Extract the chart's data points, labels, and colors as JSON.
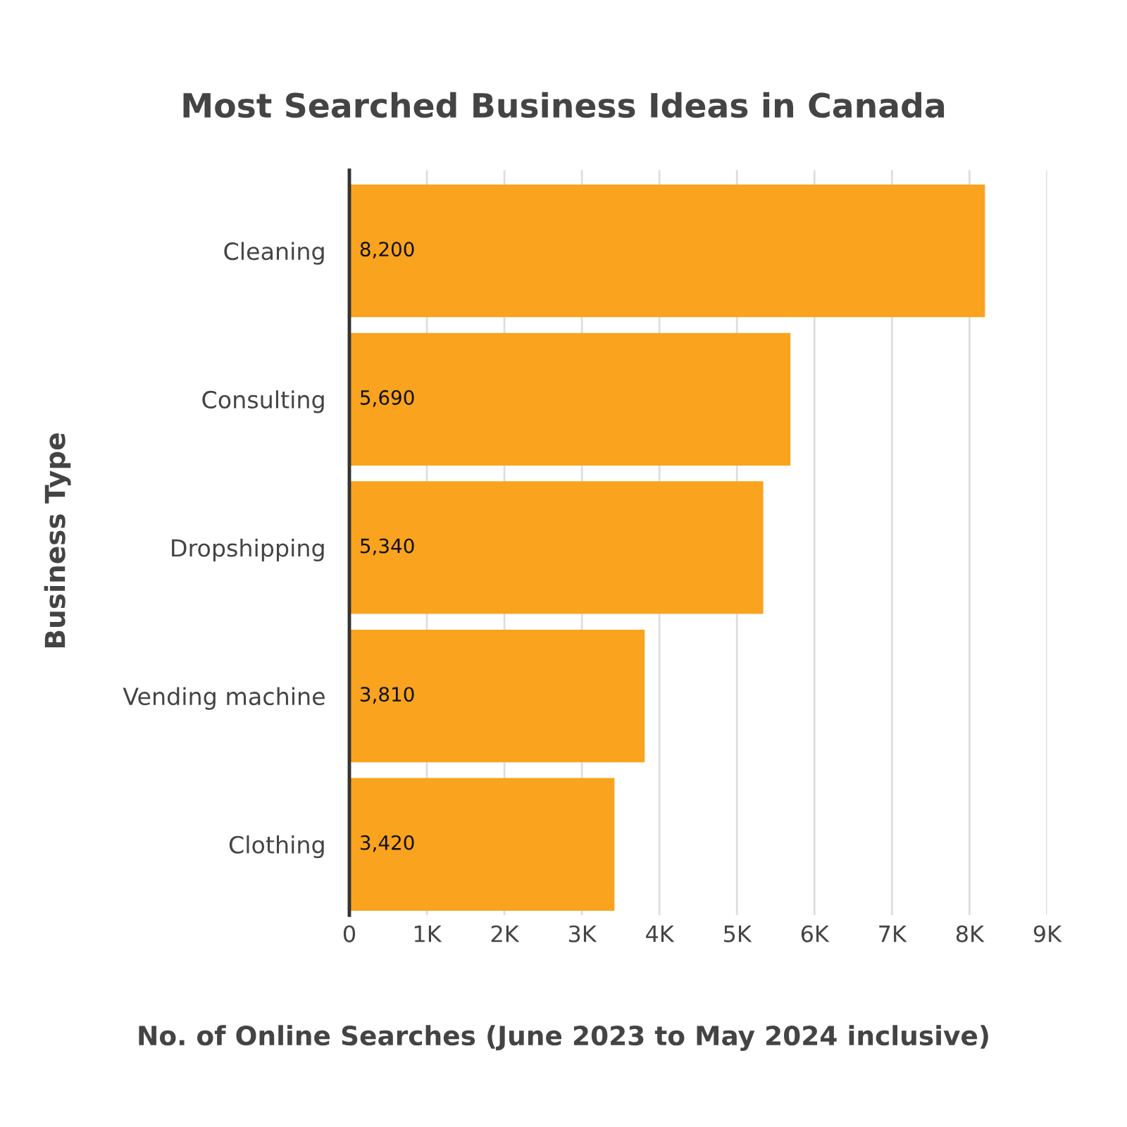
{
  "chart_data": {
    "type": "bar",
    "orientation": "horizontal",
    "title": "Most Searched Business Ideas in Canada",
    "xlabel": "No. of Online Searches (June 2023 to May 2024 inclusive)",
    "ylabel": "Business Type",
    "categories": [
      "Cleaning",
      "Consulting",
      "Dropshipping",
      "Vending machine",
      "Clothing"
    ],
    "values": [
      8200,
      5690,
      5340,
      3810,
      3420
    ],
    "color": "#f9a31f",
    "value_labels": [
      "8,200",
      "5,690",
      "5,340",
      "3,810",
      "3,420"
    ],
    "xlim": [
      0,
      9000
    ],
    "xticks": [
      0,
      {
        "value": 1000,
        "label": "1K"
      },
      {
        "value": 2000,
        "label": "2K"
      },
      {
        "value": 3000,
        "label": "3K"
      },
      {
        "value": 4000,
        "label": "4K"
      },
      {
        "value": 5000,
        "label": "5K"
      },
      {
        "value": 6000,
        "label": "6K"
      },
      {
        "value": 7000,
        "label": "7K"
      },
      {
        "value": 8000,
        "label": "8K"
      },
      {
        "value": 9000,
        "label": "9K"
      }
    ],
    "grid": "x",
    "legend": false
  }
}
